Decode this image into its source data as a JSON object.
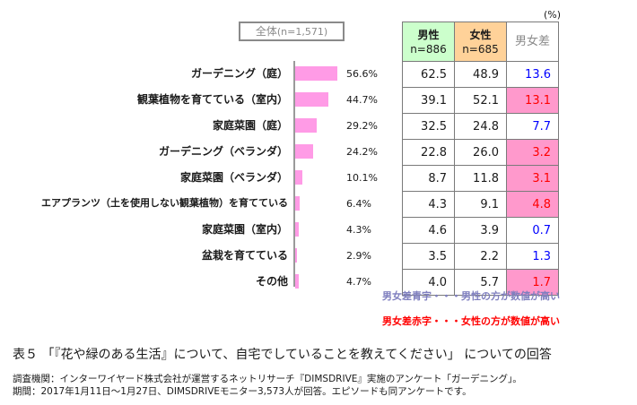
{
  "unit_label": "(%)",
  "overall_label": "全体",
  "overall_n": "(n=1,571)",
  "table_headers": {
    "male": "男性",
    "male_n": "n=886",
    "female": "女性",
    "female_n": "n=685",
    "diff": "男女差"
  },
  "notes": {
    "blue": "男女差青字・・・男性の方が数値が高い",
    "red": "男女差赤字・・・女性の方が数値が高い"
  },
  "caption": "表５ 「『花や緑のある生活』について、自宅でしていることを教えてください」 についての回答",
  "source": [
    "調査機関：インターワイヤード株式会社が運営するネットリサーチ『DIMSDRIVE』実施のアンケート「ガーデニング」。",
    "期間：2017年1月11日～1月27日、DIMSDRIVEモニター3,573人が回答。エピソードも同アンケートです。"
  ],
  "colors": {
    "bar": "#ff9be6",
    "male_header": "#ccffcc",
    "female_header": "#ffd299",
    "diff_red_bg": "#ff99cc",
    "diff_blue_text": "#0000ff",
    "diff_red_text": "#ff0000"
  },
  "chart_data": {
    "type": "bar",
    "orientation": "horizontal",
    "categories": [
      "ガーデニング（庭）",
      "観葉植物を育てている（室内）",
      "家庭菜園（庭）",
      "ガーデニング（ベランダ）",
      "家庭菜園（ベランダ）",
      "エアプランツ（土を使用しない観葉植物）を育てている",
      "家庭菜園（室内）",
      "盆栽を育てている",
      "その他"
    ],
    "values": [
      56.6,
      44.7,
      29.2,
      24.2,
      10.1,
      6.4,
      4.3,
      2.9,
      4.7
    ],
    "value_labels": [
      "56.6%",
      "44.7%",
      "29.2%",
      "24.2%",
      "10.1%",
      "6.4%",
      "4.3%",
      "2.9%",
      "4.7%"
    ],
    "xlim": [
      0,
      100
    ],
    "table": {
      "male": [
        "62.5",
        "39.1",
        "32.5",
        "22.8",
        "8.7",
        "4.3",
        "4.6",
        "3.5",
        "4.0"
      ],
      "female": [
        "48.9",
        "52.1",
        "24.8",
        "26.0",
        "11.8",
        "9.1",
        "3.9",
        "2.2",
        "5.7"
      ],
      "diff": [
        "13.6",
        "13.1",
        "7.7",
        "3.2",
        "3.1",
        "4.8",
        "0.7",
        "1.3",
        "1.7"
      ],
      "diff_higher": [
        "male",
        "female",
        "male",
        "female",
        "female",
        "female",
        "male",
        "male",
        "female"
      ]
    }
  }
}
